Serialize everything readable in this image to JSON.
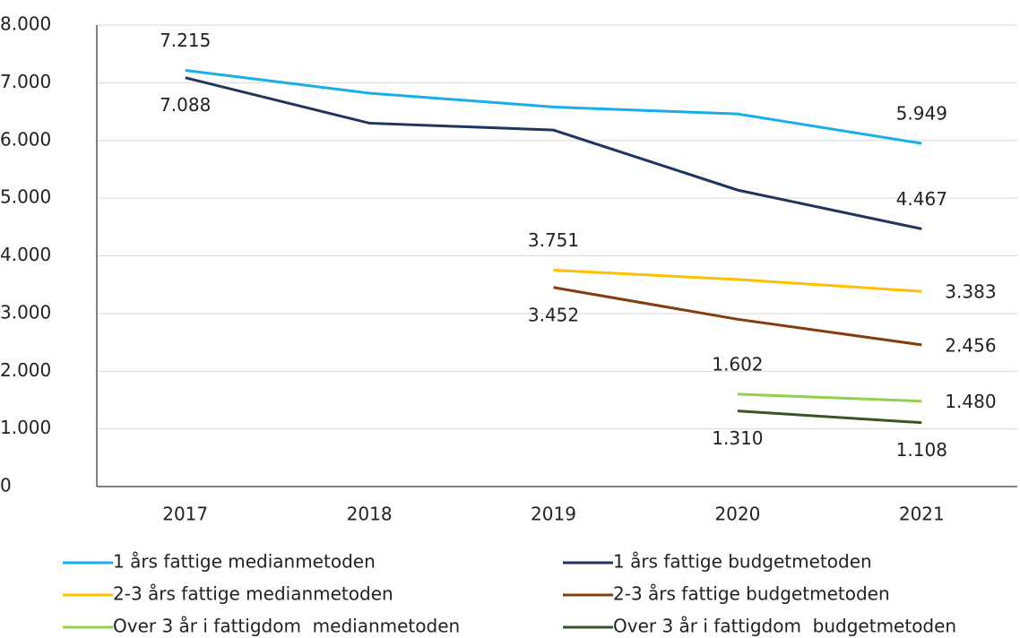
{
  "chart_data": {
    "type": "line",
    "x": [
      2017,
      2018,
      2019,
      2020,
      2021
    ],
    "ylim": [
      0,
      8000
    ],
    "yticks": [
      0,
      {
        "value": 1000,
        "label": "1.000"
      },
      {
        "value": 2000,
        "label": "2.000"
      },
      {
        "value": 3000,
        "label": "3.000"
      },
      {
        "value": 4000,
        "label": "4.000"
      },
      {
        "value": 5000,
        "label": "5.000"
      },
      {
        "value": 6000,
        "label": "6.000"
      },
      {
        "value": 7000,
        "label": "7.000"
      },
      {
        "value": 8000,
        "label": "8.000"
      }
    ],
    "grid": true,
    "legend": "bottom",
    "series": [
      {
        "name": "1 års fattige medianmetoden",
        "color": "#18AEEA",
        "values": [
          7215,
          6820,
          6580,
          6460,
          5949
        ],
        "value_labels": [
          "7.215",
          null,
          null,
          null,
          "5.949"
        ]
      },
      {
        "name": "1 års fattige budgetmetoden",
        "color": "#1F355E",
        "values": [
          7088,
          6300,
          6180,
          5140,
          4467
        ],
        "value_labels": [
          "7.088",
          null,
          null,
          null,
          "4.467"
        ]
      },
      {
        "name": "2-3 års fattige medianmetoden",
        "color": "#FFC000",
        "values": [
          null,
          null,
          3751,
          3590,
          3383
        ],
        "value_labels": [
          null,
          null,
          "3.751",
          null,
          "3.383"
        ]
      },
      {
        "name": "2-3 års fattige budgetmetoden",
        "color": "#843C0C",
        "values": [
          null,
          null,
          3452,
          2900,
          2456
        ],
        "value_labels": [
          null,
          null,
          "3.452",
          null,
          "2.456"
        ]
      },
      {
        "name": "Over 3 år i fattigdom  medianmetoden",
        "color": "#92D050",
        "values": [
          null,
          null,
          null,
          1602,
          1480
        ],
        "value_labels": [
          null,
          null,
          null,
          "1.602",
          "1.480"
        ]
      },
      {
        "name": "Over 3 år i fattigdom  budgetmetoden",
        "color": "#375623",
        "values": [
          null,
          null,
          null,
          1310,
          1108
        ],
        "value_labels": [
          null,
          null,
          null,
          "1.310",
          "1.108"
        ]
      }
    ]
  }
}
